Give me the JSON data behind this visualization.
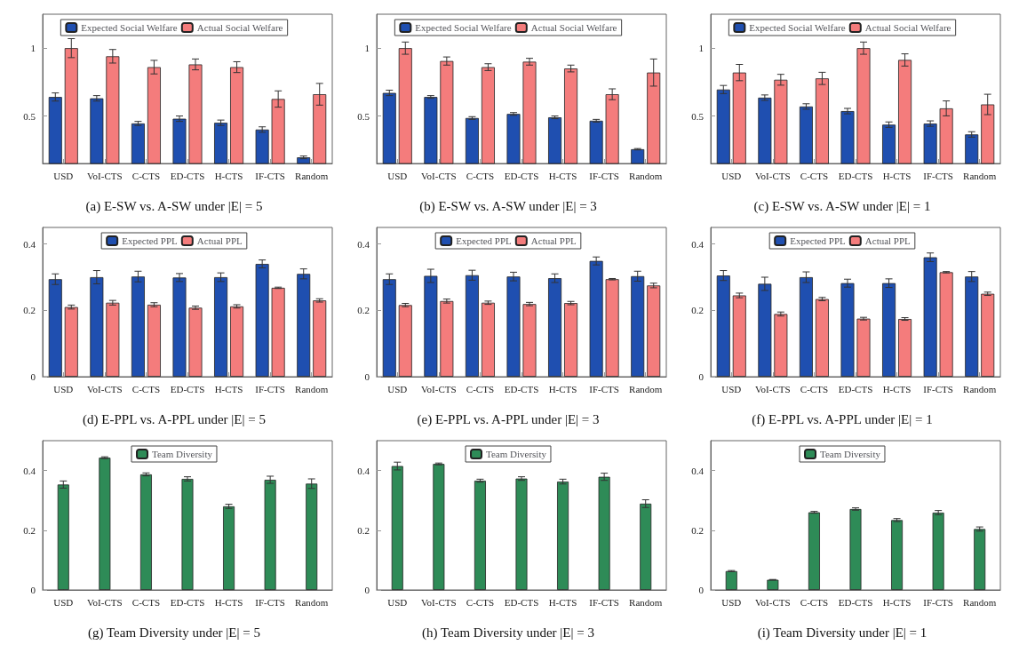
{
  "chart_data": [
    {
      "type": "bar",
      "title": "(a) E-SW vs. A-SW under |E| = 5",
      "categories": [
        "USD",
        "VoI-CTS",
        "C-CTS",
        "ED-CTS",
        "H-CTS",
        "IF-CTS",
        "Random"
      ],
      "ylim": [
        0.15,
        1.25
      ],
      "yticks": [
        0.5,
        1
      ],
      "legend": "top",
      "series": [
        {
          "name": "Expected Social Welfare",
          "color": "#1f4fb0",
          "values": [
            0.64,
            0.63,
            0.445,
            0.48,
            0.45,
            0.4,
            0.195
          ],
          "errors": [
            0.03,
            0.02,
            0.015,
            0.02,
            0.02,
            0.02,
            0.01
          ]
        },
        {
          "name": "Actual Social Welfare",
          "color": "#f47c7c",
          "values": [
            1.0,
            0.94,
            0.86,
            0.88,
            0.86,
            0.625,
            0.66
          ],
          "errors": [
            0.07,
            0.05,
            0.05,
            0.04,
            0.04,
            0.06,
            0.08
          ]
        }
      ]
    },
    {
      "type": "bar",
      "title": "(b) E-SW vs. A-SW under |E| = 3",
      "categories": [
        "USD",
        "VoI-CTS",
        "C-CTS",
        "ED-CTS",
        "H-CTS",
        "IF-CTS",
        "Random"
      ],
      "ylim": [
        0.15,
        1.25
      ],
      "yticks": [
        0.5,
        1
      ],
      "legend": "top",
      "series": [
        {
          "name": "Expected Social Welfare",
          "color": "#1f4fb0",
          "values": [
            0.67,
            0.64,
            0.485,
            0.515,
            0.49,
            0.465,
            0.255
          ],
          "errors": [
            0.02,
            0.01,
            0.01,
            0.01,
            0.01,
            0.01,
            0.005
          ]
        },
        {
          "name": "Actual Social Welfare",
          "color": "#f47c7c",
          "values": [
            1.0,
            0.905,
            0.86,
            0.9,
            0.85,
            0.66,
            0.82
          ],
          "errors": [
            0.045,
            0.03,
            0.025,
            0.025,
            0.025,
            0.04,
            0.1
          ]
        }
      ]
    },
    {
      "type": "bar",
      "title": "(c) E-SW vs. A-SW under |E| = 1",
      "categories": [
        "USD",
        "VoI-CTS",
        "C-CTS",
        "ED-CTS",
        "H-CTS",
        "IF-CTS",
        "Random"
      ],
      "ylim": [
        0.15,
        1.25
      ],
      "yticks": [
        0.5,
        1
      ],
      "legend": "top",
      "series": [
        {
          "name": "Expected Social Welfare",
          "color": "#1f4fb0",
          "values": [
            0.695,
            0.635,
            0.57,
            0.536,
            0.436,
            0.444,
            0.364
          ],
          "errors": [
            0.03,
            0.02,
            0.02,
            0.02,
            0.02,
            0.02,
            0.02
          ]
        },
        {
          "name": "Actual Social Welfare",
          "color": "#f47c7c",
          "values": [
            0.82,
            0.767,
            0.777,
            1.0,
            0.913,
            0.556,
            0.585
          ],
          "errors": [
            0.06,
            0.04,
            0.045,
            0.045,
            0.045,
            0.055,
            0.075
          ]
        }
      ]
    },
    {
      "type": "bar",
      "title": "(d) E-PPL vs. A-PPL under |E| = 5",
      "categories": [
        "USD",
        "VoI-CTS",
        "C-CTS",
        "ED-CTS",
        "H-CTS",
        "IF-CTS",
        "Random"
      ],
      "ylim": [
        0,
        0.45
      ],
      "yticks": [
        0,
        0.2,
        0.4
      ],
      "legend": "top",
      "series": [
        {
          "name": "Expected PPL",
          "color": "#1f4fb0",
          "values": [
            0.294,
            0.3,
            0.302,
            0.299,
            0.3,
            0.34,
            0.31
          ],
          "errors": [
            0.016,
            0.02,
            0.016,
            0.012,
            0.013,
            0.012,
            0.015
          ]
        },
        {
          "name": "Actual PPL",
          "color": "#f47c7c",
          "values": [
            0.21,
            0.223,
            0.217,
            0.208,
            0.212,
            0.268,
            0.23
          ],
          "errors": [
            0.006,
            0.007,
            0.006,
            0.005,
            0.005,
            0.002,
            0.005
          ]
        }
      ]
    },
    {
      "type": "bar",
      "title": "(e) E-PPL vs. A-PPL under |E| = 3",
      "categories": [
        "USD",
        "VoI-CTS",
        "C-CTS",
        "ED-CTS",
        "H-CTS",
        "IF-CTS",
        "Random"
      ],
      "ylim": [
        0,
        0.45
      ],
      "yticks": [
        0,
        0.2,
        0.4
      ],
      "legend": "top",
      "series": [
        {
          "name": "Expected PPL",
          "color": "#1f4fb0",
          "values": [
            0.294,
            0.304,
            0.306,
            0.302,
            0.297,
            0.349,
            0.303
          ],
          "errors": [
            0.016,
            0.02,
            0.015,
            0.013,
            0.013,
            0.012,
            0.015
          ]
        },
        {
          "name": "Actual PPL",
          "color": "#f47c7c",
          "values": [
            0.216,
            0.228,
            0.223,
            0.219,
            0.222,
            0.294,
            0.275
          ],
          "errors": [
            0.005,
            0.006,
            0.005,
            0.005,
            0.005,
            0.002,
            0.007
          ]
        }
      ]
    },
    {
      "type": "bar",
      "title": "(f) E-PPL vs. A-PPL under |E| = 1",
      "categories": [
        "USD",
        "VoI-CTS",
        "C-CTS",
        "ED-CTS",
        "H-CTS",
        "IF-CTS",
        "Random"
      ],
      "ylim": [
        0,
        0.45
      ],
      "yticks": [
        0,
        0.2,
        0.4
      ],
      "legend": "top",
      "series": [
        {
          "name": "Expected PPL",
          "color": "#1f4fb0",
          "values": [
            0.305,
            0.28,
            0.3,
            0.282,
            0.282,
            0.36,
            0.302
          ],
          "errors": [
            0.015,
            0.02,
            0.016,
            0.012,
            0.013,
            0.013,
            0.015
          ]
        },
        {
          "name": "Actual PPL",
          "color": "#f47c7c",
          "values": [
            0.245,
            0.189,
            0.234,
            0.175,
            0.174,
            0.315,
            0.25
          ],
          "errors": [
            0.007,
            0.006,
            0.005,
            0.004,
            0.004,
            0.002,
            0.005
          ]
        }
      ]
    },
    {
      "type": "bar",
      "title": "(g) Team Diversity under |E| = 5",
      "categories": [
        "USD",
        "VoI-CTS",
        "C-CTS",
        "ED-CTS",
        "H-CTS",
        "IF-CTS",
        "Random"
      ],
      "ylim": [
        0,
        0.5
      ],
      "yticks": [
        0,
        0.2,
        0.4
      ],
      "legend": "top",
      "series": [
        {
          "name": "Team Diversity",
          "color": "#2e8b57",
          "values": [
            0.353,
            0.443,
            0.387,
            0.372,
            0.28,
            0.369,
            0.356
          ],
          "errors": [
            0.012,
            0.003,
            0.005,
            0.007,
            0.007,
            0.012,
            0.016
          ]
        }
      ]
    },
    {
      "type": "bar",
      "title": "(h) Team Diversity under |E| = 3",
      "categories": [
        "USD",
        "VoI-CTS",
        "C-CTS",
        "ED-CTS",
        "H-CTS",
        "IF-CTS",
        "Random"
      ],
      "ylim": [
        0,
        0.5
      ],
      "yticks": [
        0,
        0.2,
        0.4
      ],
      "legend": "top",
      "series": [
        {
          "name": "Team Diversity",
          "color": "#2e8b57",
          "values": [
            0.415,
            0.422,
            0.366,
            0.373,
            0.363,
            0.379,
            0.289
          ],
          "errors": [
            0.013,
            0.003,
            0.005,
            0.006,
            0.008,
            0.012,
            0.013
          ]
        }
      ]
    },
    {
      "type": "bar",
      "title": "(i) Team Diversity under |E| = 1",
      "categories": [
        "USD",
        "VoI-CTS",
        "C-CTS",
        "ED-CTS",
        "H-CTS",
        "IF-CTS",
        "Random"
      ],
      "ylim": [
        0,
        0.5
      ],
      "yticks": [
        0,
        0.2,
        0.4
      ],
      "legend": "top",
      "series": [
        {
          "name": "Team Diversity",
          "color": "#2e8b57",
          "values": [
            0.063,
            0.034,
            0.26,
            0.271,
            0.234,
            0.259,
            0.204
          ],
          "errors": [
            0.002,
            0.001,
            0.003,
            0.004,
            0.005,
            0.007,
            0.007
          ]
        }
      ]
    }
  ]
}
